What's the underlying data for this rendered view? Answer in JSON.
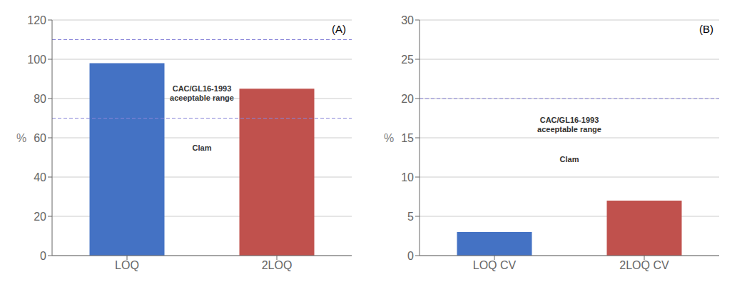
{
  "chart_data": [
    {
      "type": "bar",
      "title": "(A)",
      "ylabel": "%",
      "categories": [
        "LOQ",
        "2LOQ"
      ],
      "values": [
        98,
        85
      ],
      "colors": [
        "#4472C4",
        "#C0514D"
      ],
      "ylim": [
        0,
        120
      ],
      "yticks": [
        0,
        20,
        40,
        60,
        80,
        100,
        120
      ],
      "grid": true,
      "hlines": [
        110,
        70
      ],
      "annotations": [
        {
          "text": "CAC/GL16-1993\naceeptable range",
          "y": 88
        },
        {
          "text": "Clam",
          "y": 58
        }
      ]
    },
    {
      "type": "bar",
      "title": "(B)",
      "ylabel": "%",
      "categories": [
        "LOQ CV",
        "2LOQ CV"
      ],
      "values": [
        3,
        7
      ],
      "colors": [
        "#4472C4",
        "#C0514D"
      ],
      "ylim": [
        0,
        30
      ],
      "yticks": [
        0,
        5,
        10,
        15,
        20,
        25,
        30
      ],
      "grid": true,
      "hlines": [
        20
      ],
      "annotations": [
        {
          "text": "CAC/GL16-1993\naceeptable range",
          "y": 18
        },
        {
          "text": "Clam",
          "y": 13
        }
      ]
    }
  ]
}
